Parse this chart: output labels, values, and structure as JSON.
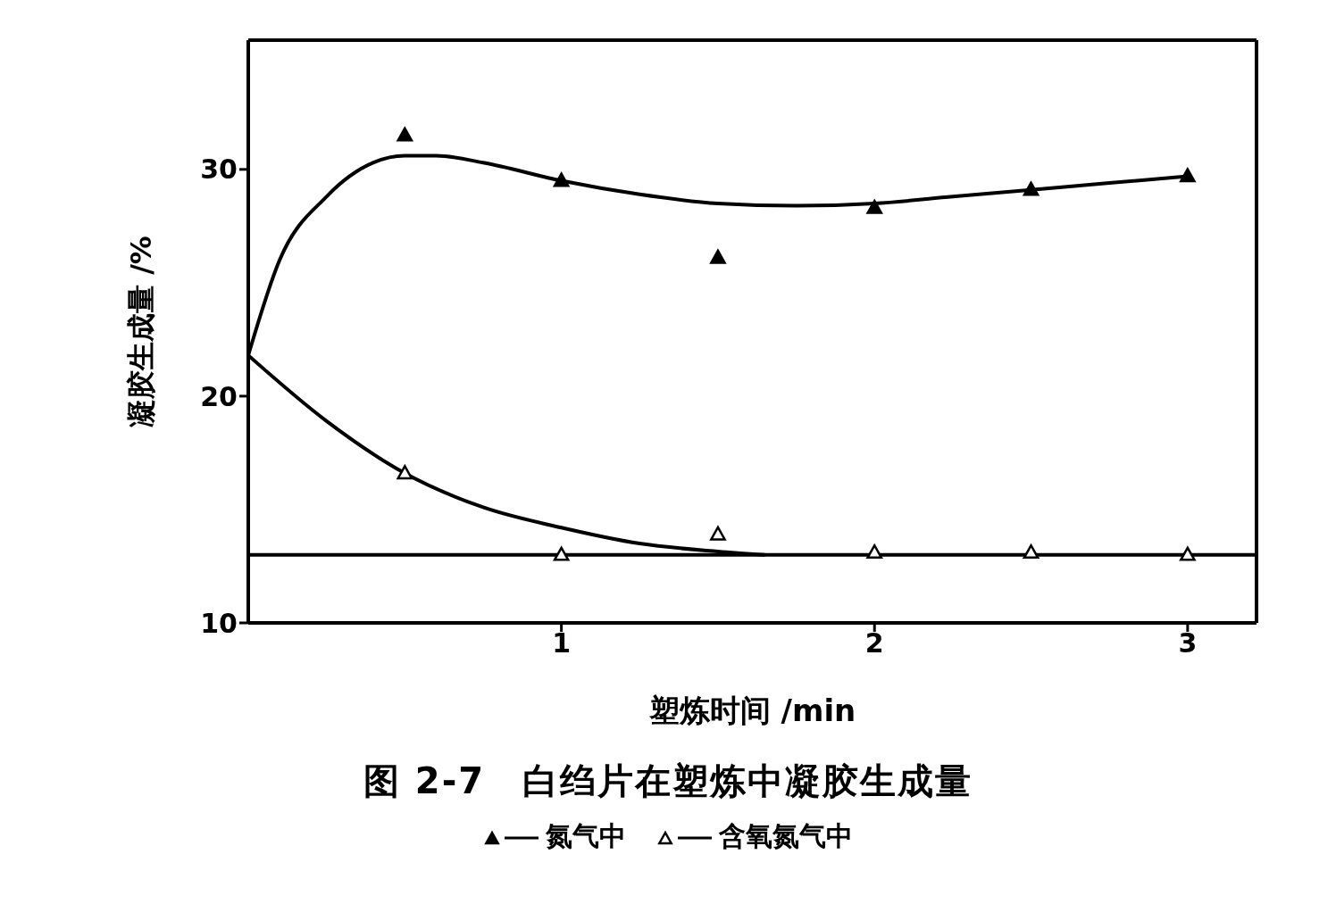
{
  "chart_data": {
    "type": "scatter",
    "title": "图 2-7　白绉片在塑炼中凝胶生成量",
    "xlabel": "塑炼时间 /min",
    "ylabel": "凝胶生成量 /%",
    "xlim": [
      0,
      3.22
    ],
    "xticks": [
      1,
      2,
      3
    ],
    "ylim": [
      10,
      35.7
    ],
    "yticks": [
      10,
      20,
      30
    ],
    "grid": false,
    "legend": "bottom",
    "marker": "triangle",
    "series": [
      {
        "name": "氮气中",
        "color": "#000000",
        "x": [
          0.5,
          1,
          1.5,
          2,
          2.5,
          3
        ],
        "values": [
          31.5,
          29.5,
          26.1,
          28.3,
          29.1,
          29.7
        ]
      },
      {
        "name": "含氧氮气中",
        "color": "#000000",
        "x": [
          0.5,
          1,
          1.5,
          2,
          2.5,
          3
        ],
        "values": [
          16.6,
          13.0,
          13.9,
          13.1,
          13.1,
          13.0
        ]
      },
      {
        "type": "line",
        "marker": "none",
        "color": "#000000",
        "x": [
          0,
          0.1,
          0.25,
          0.4,
          0.5,
          0.6,
          0.75,
          1,
          1.25,
          1.5,
          1.75,
          2,
          2.25,
          2.5,
          2.75,
          3
        ],
        "values": [
          21.8,
          26.0,
          28.8,
          30.3,
          30.6,
          30.6,
          30.3,
          29.5,
          28.9,
          28.5,
          28.4,
          28.5,
          28.8,
          29.1,
          29.4,
          29.7
        ]
      },
      {
        "type": "line",
        "marker": "none",
        "color": "#000000",
        "x": [
          0,
          0.25,
          0.5,
          0.75,
          1,
          1.25,
          1.5,
          1.65
        ],
        "values": [
          21.8,
          18.9,
          16.6,
          15.1,
          14.2,
          13.5,
          13.15,
          13.0
        ]
      },
      {
        "type": "line",
        "marker": "none",
        "color": "#000000",
        "x": [
          0,
          3.22
        ],
        "values": [
          13.0,
          13.0
        ]
      }
    ]
  }
}
